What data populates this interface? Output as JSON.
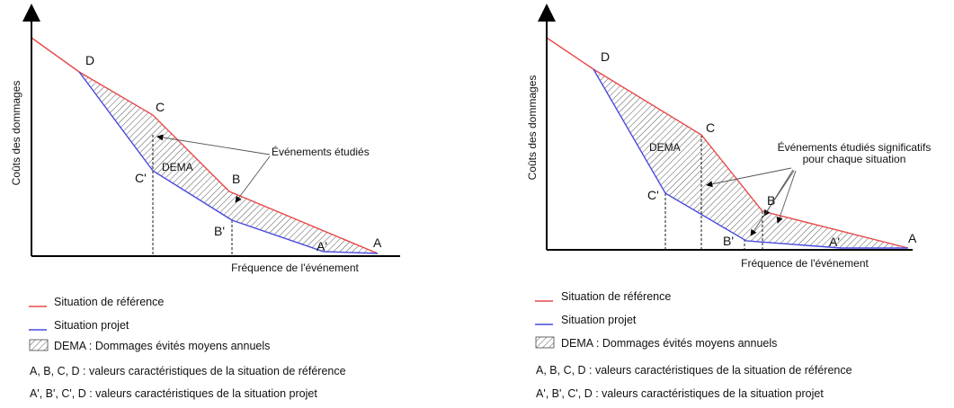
{
  "panels": [
    {
      "y_axis_label": "Coûts des dommages",
      "x_axis_label": "Fréquence de l'événement",
      "points": {
        "D": "D",
        "C": "C",
        "B": "B",
        "A": "A",
        "C2": "C'",
        "B2": "B'",
        "A2": "A'"
      },
      "area_label": "DEMA",
      "annotation": [
        "Événements étudiés"
      ],
      "legend": [
        "Situation de référence",
        "Situation projet",
        "DEMA : Dommages évités moyens annuels",
        "A, B, C, D : valeurs caractéristiques de la situation de référence",
        "A', B', C', D : valeurs caractéristiques de la situation projet"
      ]
    },
    {
      "y_axis_label": "Coûts des dommages",
      "x_axis_label": "Fréquence de l'événement",
      "points": {
        "D": "D",
        "C": "C",
        "B": "B",
        "A": "A",
        "C2": "C'",
        "B2": "B'",
        "A2": "A'"
      },
      "area_label": "DEMA",
      "annotation": [
        "Événements étudiés significatifs",
        "pour chaque situation"
      ],
      "legend": [
        "Situation de référence",
        "Situation projet",
        "DEMA : Dommages évités moyens annuels",
        "A, B, C, D : valeurs caractéristiques de la situation de référence",
        "A', B', C', D : valeurs caractéristiques de la situation projet"
      ]
    }
  ]
}
